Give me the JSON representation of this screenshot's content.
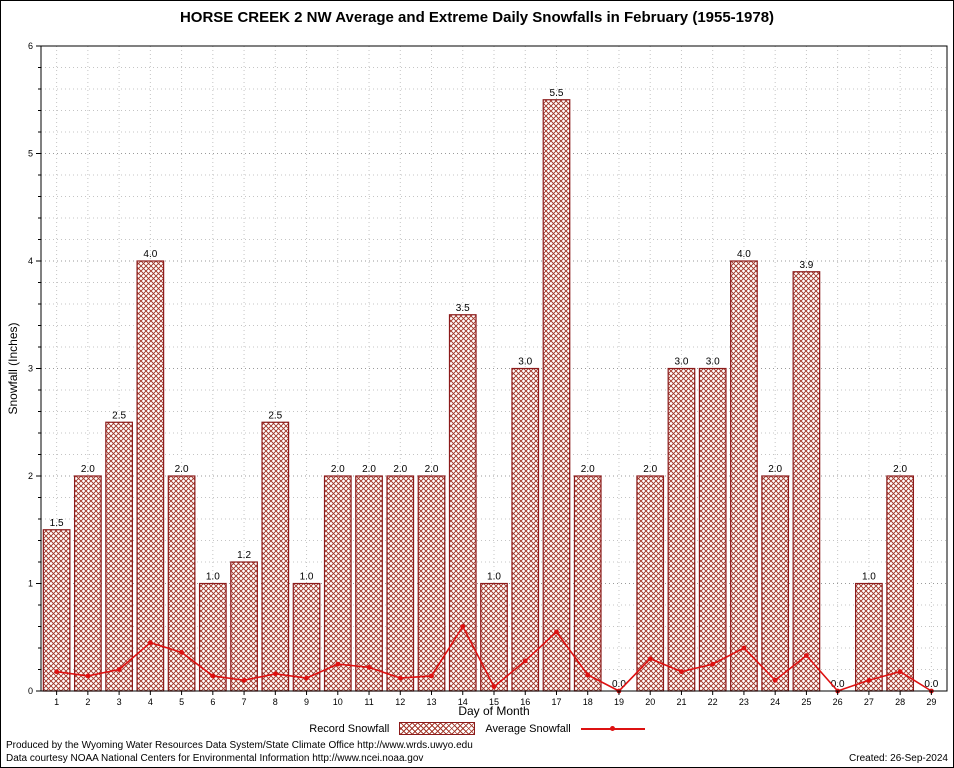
{
  "title": "HORSE CREEK 2 NW Average and Extreme Daily Snowfalls in February (1955-1978)",
  "chart_data": {
    "type": "bar",
    "categories": [
      1,
      2,
      3,
      4,
      5,
      6,
      7,
      8,
      9,
      10,
      11,
      12,
      13,
      14,
      15,
      16,
      17,
      18,
      19,
      20,
      21,
      22,
      23,
      24,
      25,
      26,
      27,
      28,
      29
    ],
    "series": [
      {
        "name": "Record Snowfall",
        "type": "bar",
        "values": [
          1.5,
          2.0,
          2.5,
          4.0,
          2.0,
          1.0,
          1.2,
          2.5,
          1.0,
          2.0,
          2.0,
          2.0,
          2.0,
          3.5,
          1.0,
          3.0,
          5.5,
          2.0,
          0.0,
          2.0,
          3.0,
          3.0,
          4.0,
          2.0,
          3.9,
          0.0,
          1.0,
          2.0,
          0.0
        ]
      },
      {
        "name": "Average Snowfall",
        "type": "line",
        "values": [
          0.18,
          0.14,
          0.2,
          0.45,
          0.36,
          0.14,
          0.1,
          0.16,
          0.12,
          0.25,
          0.22,
          0.12,
          0.14,
          0.6,
          0.04,
          0.28,
          0.55,
          0.15,
          0.0,
          0.3,
          0.18,
          0.25,
          0.4,
          0.1,
          0.33,
          0.0,
          0.1,
          0.18,
          0.0
        ]
      }
    ],
    "xlabel": "Day of Month",
    "ylabel": "Snowfall (Inches)",
    "ylim": [
      0,
      6
    ],
    "y_major_tick": 1,
    "y_minor_tick": 0.2,
    "grid": true,
    "legend_position": "bottom"
  },
  "colors": {
    "bar_outline": "#8b1a1a",
    "bar_hatch": "#a03325",
    "line": "#dd1111",
    "grid_major": "#9a9a9a",
    "grid_minor": "#c4c4c4",
    "axis": "#000000"
  },
  "footer": {
    "line1": "Produced by the Wyoming Water Resources Data System/State Climate Office http://www.wrds.uwyo.edu",
    "line2": "Data courtesy NOAA National Centers for Environmental Information http://www.ncei.noaa.gov",
    "created": "Created: 26-Sep-2024"
  }
}
